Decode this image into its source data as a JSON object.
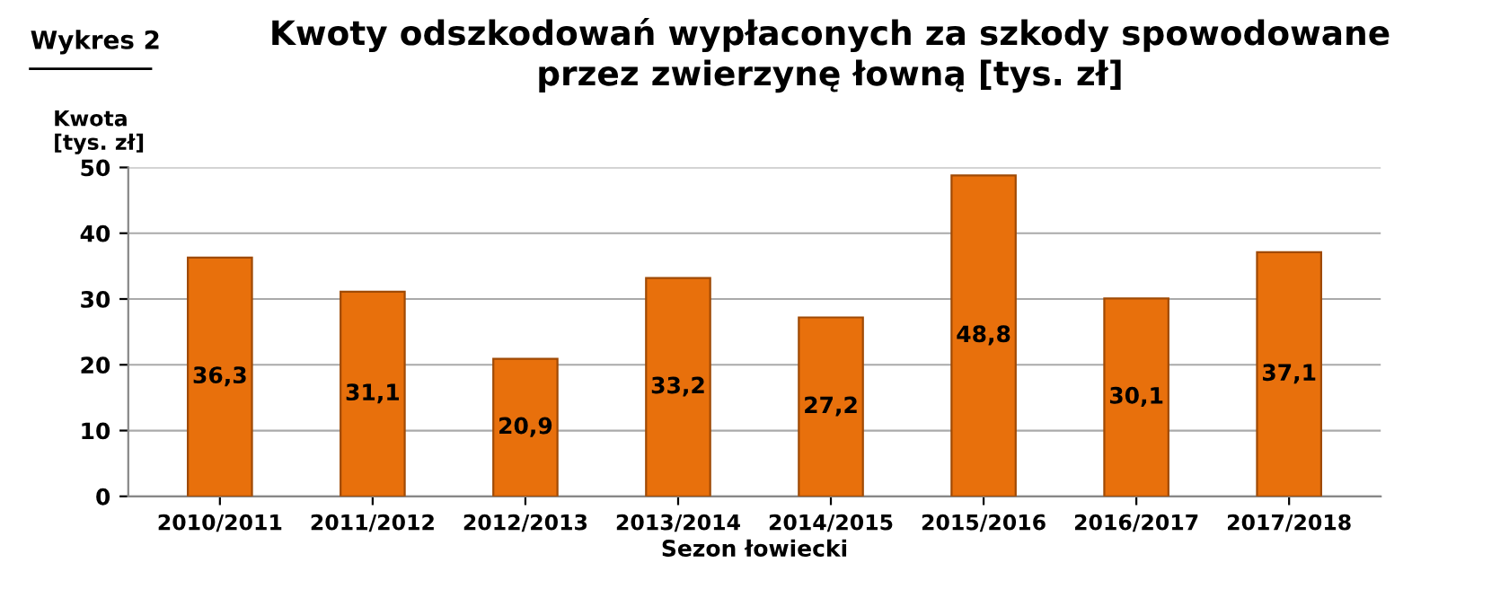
{
  "chart_data": {
    "type": "bar",
    "title": "Kwoty odszkodowań wypłaconych za szkody spowodowane\nprzez zwierzynę łowną [tys. zł]",
    "annotations": [
      "Wykres 2"
    ],
    "xlabel": "Sezon łowiecki",
    "ylabel": "Kwota\n[tys. zł]",
    "categories": [
      "2010/2011",
      "2011/2012",
      "2012/2013",
      "2013/2014",
      "2014/2015",
      "2015/2016",
      "2016/2017",
      "2017/2018"
    ],
    "values": [
      36.3,
      31.1,
      20.9,
      33.2,
      27.2,
      48.8,
      30.1,
      37.1
    ],
    "value_labels": [
      "36,3",
      "31,1",
      "20,9",
      "33,2",
      "27,2",
      "48,8",
      "30,1",
      "37,1"
    ],
    "color": "#e8700c",
    "ylim": [
      0,
      50
    ],
    "yticks": [
      0,
      10,
      20,
      30,
      40,
      50
    ],
    "grid": "y"
  }
}
